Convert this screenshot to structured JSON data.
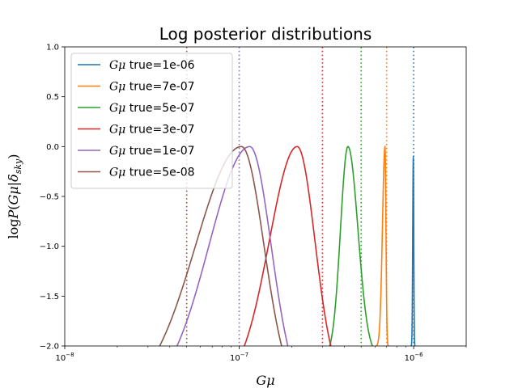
{
  "chart_data": {
    "type": "line",
    "title": "Log posterior distributions",
    "xlabel": "Gμ",
    "ylabel": "logP(Gμ|δ_sky)",
    "xscale": "log",
    "xlim": [
      1e-08,
      2e-06
    ],
    "ylim": [
      -2.0,
      1.0
    ],
    "x_major_ticks": [
      1e-08,
      1e-07,
      1e-06
    ],
    "x_tick_labels": [
      {
        "base": "10",
        "exp": "−8"
      },
      {
        "base": "10",
        "exp": "−7"
      },
      {
        "base": "10",
        "exp": "−6"
      }
    ],
    "y_ticks": [
      1.0,
      0.5,
      0.0,
      -0.5,
      -1.0,
      -1.5,
      -2.0
    ],
    "y_tick_labels": [
      "1.0",
      "0.5",
      "0.0",
      "−0.5",
      "−1.0",
      "−1.5",
      "−2.0"
    ],
    "grid": false,
    "legend_position": "upper-left",
    "series": [
      {
        "name": "true=1e-06",
        "color": "#1f77b4",
        "true_value": 1e-06,
        "peak_x": 9.95e-07,
        "peak_y": -0.11,
        "left_x": 9.65e-07,
        "right_x": 1.02e-06,
        "k": 8.0
      },
      {
        "name": "true=7e-07",
        "color": "#ff7f0e",
        "true_value": 7e-07,
        "peak_x": 6.85e-07,
        "peak_y": 0.0,
        "left_x": 6.1e-07,
        "right_x": 7.15e-07,
        "k": 6.0
      },
      {
        "name": "true=5e-07",
        "color": "#2ca02c",
        "true_value": 5e-07,
        "peak_x": 4.2e-07,
        "peak_y": 0.0,
        "left_x": 3.3e-07,
        "right_x": 5.8e-07,
        "k": 3.0
      },
      {
        "name": "true=3e-07",
        "color": "#d62728",
        "true_value": 3e-07,
        "peak_x": 2.15e-07,
        "peak_y": 0.0,
        "left_x": 1.07e-07,
        "right_x": 3.35e-07,
        "k": 1.8
      },
      {
        "name": "true=1e-07",
        "color": "#9467bd",
        "true_value": 1e-07,
        "peak_x": 1.15e-07,
        "peak_y": 0.0,
        "left_x": 4.4e-08,
        "right_x": 1.9e-07,
        "k": 1.6
      },
      {
        "name": "true=5e-08",
        "color": "#8c564b",
        "true_value": 5e-08,
        "peak_x": 1.03e-07,
        "peak_y": 0.0,
        "left_x": 3.5e-08,
        "right_x": 1.75e-07,
        "k": 1.6
      }
    ]
  }
}
